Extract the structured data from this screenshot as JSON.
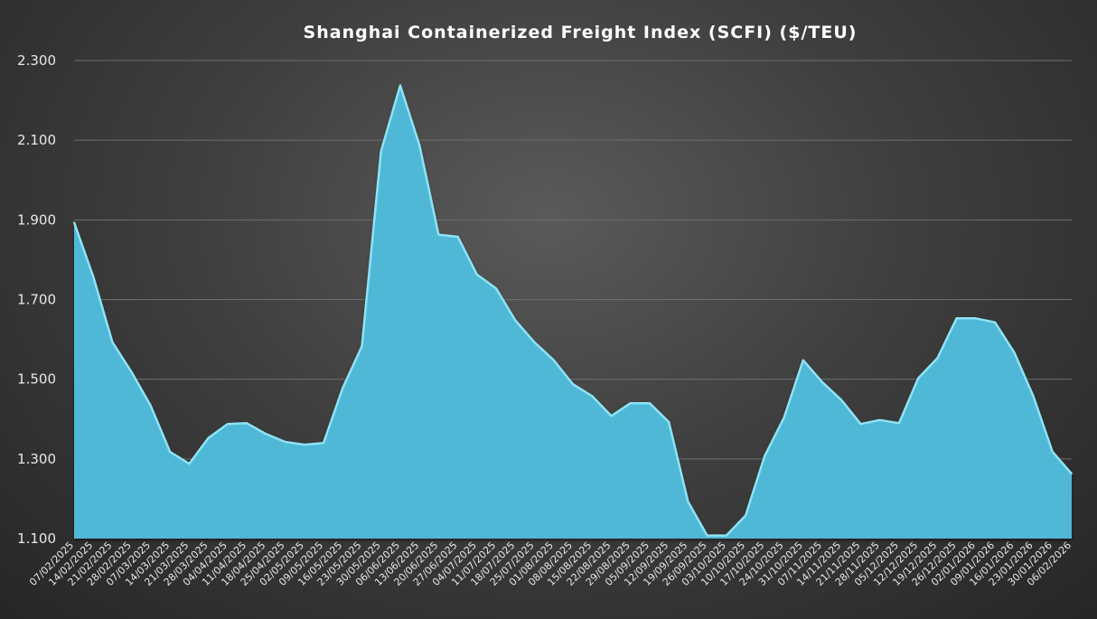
{
  "chart_data": {
    "type": "area",
    "title": "Shanghai Containerized Freight Index (SCFI) ($/TEU)",
    "xlabel": "",
    "ylabel": "",
    "ylim": [
      1100,
      2300
    ],
    "yticks": [
      "1.100",
      "1.300",
      "1.500",
      "1.700",
      "1.900",
      "2.100",
      "2.300"
    ],
    "grid": true,
    "fill_color": "#4FB8D6",
    "edge_color": "#8FE3F5",
    "x": [
      "07/02/2025",
      "14/02/2025",
      "21/02/2025",
      "28/02/2025",
      "07/03/2025",
      "14/03/2025",
      "21/03/2025",
      "28/03/2025",
      "04/04/2025",
      "11/04/2025",
      "18/04/2025",
      "25/04/2025",
      "02/05/2025",
      "09/05/2025",
      "16/05/2025",
      "23/05/2025",
      "30/05/2025",
      "06/06/2025",
      "13/06/2025",
      "20/06/2025",
      "27/06/2025",
      "04/07/2025",
      "11/07/2025",
      "18/07/2025",
      "25/07/2025",
      "01/08/2025",
      "08/08/2025",
      "15/08/2025",
      "22/08/2025",
      "29/08/2025",
      "05/09/2025",
      "12/09/2025",
      "19/09/2025",
      "26/09/2025",
      "03/10/2025",
      "10/10/2025",
      "17/10/2025",
      "24/10/2025",
      "31/10/2025",
      "07/11/2025",
      "14/11/2025",
      "21/11/2025",
      "28/11/2025",
      "05/12/2025",
      "12/12/2025",
      "19/12/2025",
      "26/12/2025",
      "02/01/2026",
      "09/01/2026",
      "16/01/2026",
      "23/01/2026",
      "30/01/2026",
      "06/02/2026"
    ],
    "values": [
      1896,
      1760,
      1595,
      1520,
      1435,
      1320,
      1290,
      1355,
      1390,
      1392,
      1365,
      1345,
      1338,
      1342,
      1480,
      1585,
      2075,
      2240,
      2090,
      1865,
      1860,
      1765,
      1730,
      1650,
      1595,
      1550,
      1490,
      1460,
      1410,
      1442,
      1442,
      1395,
      1195,
      1110,
      1110,
      1160,
      1310,
      1405,
      1550,
      1495,
      1450,
      1390,
      1400,
      1392,
      1505,
      1555,
      1655,
      1655,
      1645,
      1570,
      1460,
      1320,
      1265
    ]
  }
}
